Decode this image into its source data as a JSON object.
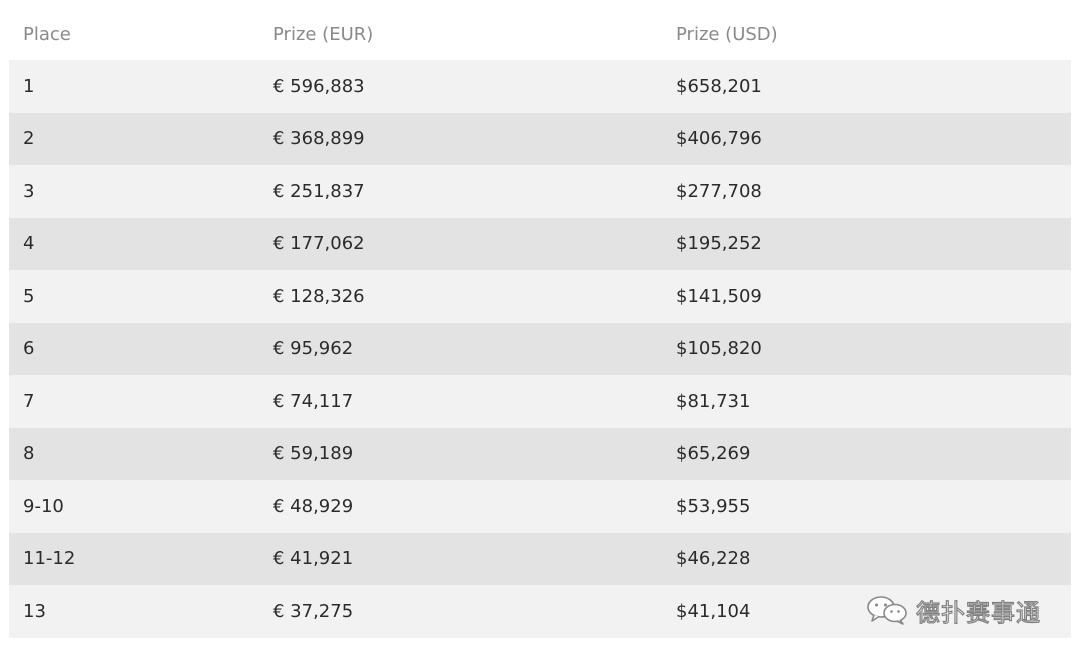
{
  "table": {
    "headers": {
      "place": "Place",
      "eur": "Prize (EUR)",
      "usd": "Prize (USD)"
    },
    "rows": [
      {
        "place": "1",
        "eur": "€ 596,883",
        "usd": "$658,201"
      },
      {
        "place": "2",
        "eur": "€ 368,899",
        "usd": "$406,796"
      },
      {
        "place": "3",
        "eur": "€ 251,837",
        "usd": "$277,708"
      },
      {
        "place": "4",
        "eur": "€ 177,062",
        "usd": "$195,252"
      },
      {
        "place": "5",
        "eur": "€ 128,326",
        "usd": "$141,509"
      },
      {
        "place": "6",
        "eur": "€ 95,962",
        "usd": "$105,820"
      },
      {
        "place": "7",
        "eur": "€ 74,117",
        "usd": "$81,731"
      },
      {
        "place": "8",
        "eur": "€ 59,189",
        "usd": "$65,269"
      },
      {
        "place": "9-10",
        "eur": "€ 48,929",
        "usd": "$53,955"
      },
      {
        "place": "11-12",
        "eur": "€ 41,921",
        "usd": "$46,228"
      },
      {
        "place": "13",
        "eur": "€ 37,275",
        "usd": "$41,104"
      }
    ]
  },
  "watermark": {
    "icon": "wechat-icon",
    "text": "德扑赛事通"
  },
  "colors": {
    "header_text": "#8a8a8a",
    "row_odd": "#f2f2f2",
    "row_even": "#e3e3e3",
    "body_text": "#2b2b2b"
  }
}
